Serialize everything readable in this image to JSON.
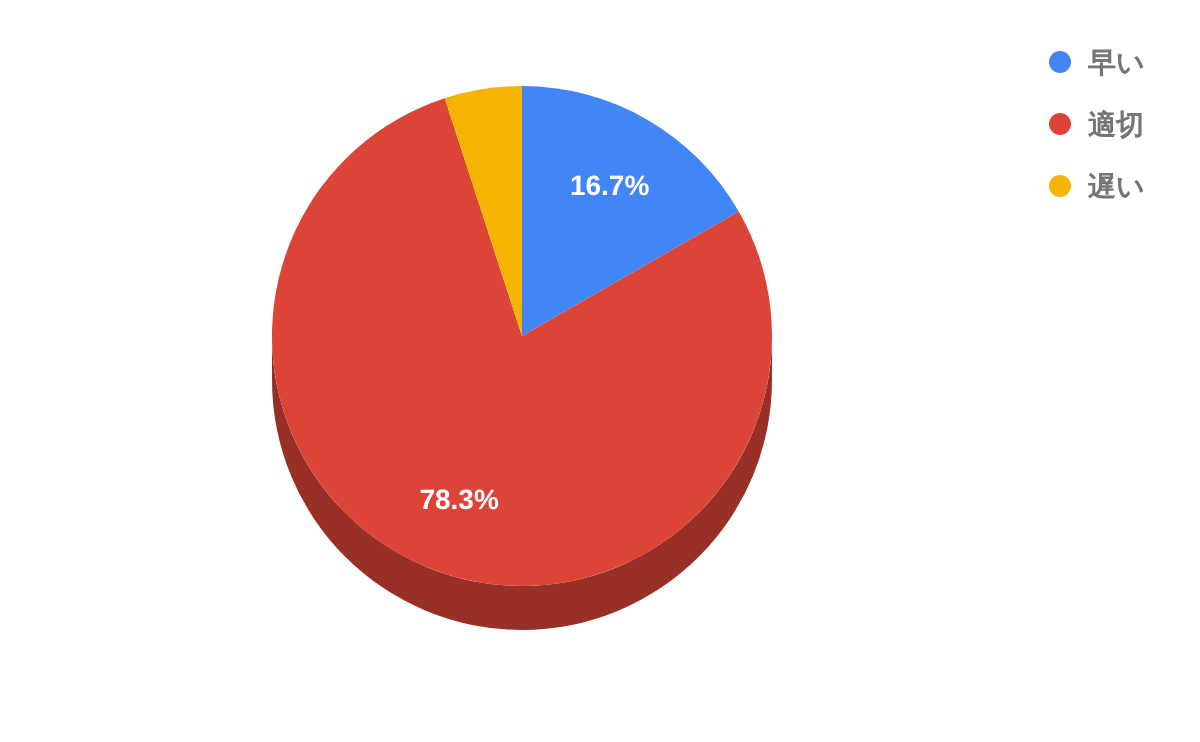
{
  "chart_data": {
    "type": "pie",
    "categories": [
      "早い",
      "適切",
      "遅い"
    ],
    "values": [
      16.7,
      78.3,
      5.0
    ],
    "colors": [
      "#4285f4",
      "#db4437",
      "#f4b400"
    ],
    "value_labels": [
      "16.7%",
      "78.3%",
      null
    ],
    "legend": "top right"
  }
}
